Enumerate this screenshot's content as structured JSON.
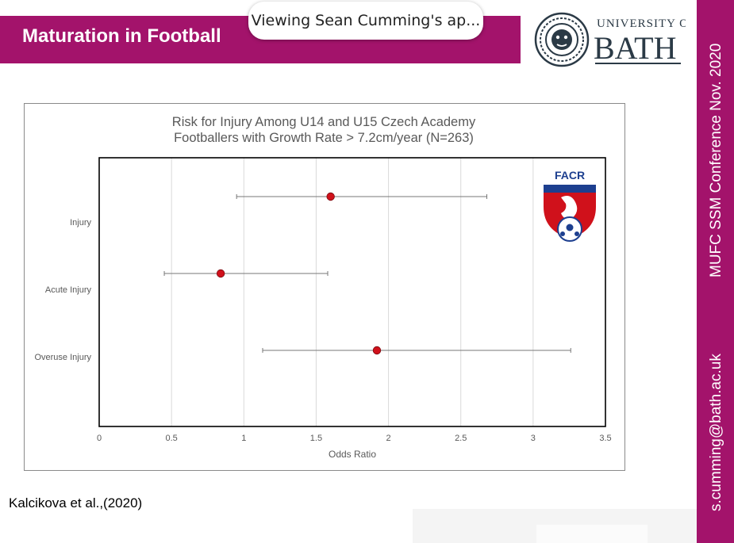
{
  "slide": {
    "title": "Maturation in Football",
    "citation": "Kalcikova et al.,(2020)"
  },
  "notification": {
    "text": "Viewing Sean Cumming's ap..."
  },
  "logo": {
    "line1": "UNIVERSITY OF",
    "line2": "BATH"
  },
  "side": {
    "conference": "MUFC SSM Conference  Nov.  2020",
    "email": "s.cumming@bath.ac.uk"
  },
  "colors": {
    "brand": "#a3136b",
    "marker": "#d0111b",
    "whisker": "#777777"
  },
  "badge": {
    "text": "FACR"
  },
  "chart_data": {
    "type": "scatter",
    "title_line1": "Risk for Injury Among U14 and U15 Czech Academy",
    "title_line2": "Footballers with Growth Rate > 7.2cm/year (N=263)",
    "xlabel": "Odds Ratio",
    "xlim": [
      0,
      3.5
    ],
    "xticks": [
      0,
      0.5,
      1,
      1.5,
      2,
      2.5,
      3,
      3.5
    ],
    "xtick_labels": [
      "0",
      "0.5",
      "1",
      "1.5",
      "2",
      "2.5",
      "3",
      "3.5"
    ],
    "grid": "vertical",
    "categories": [
      "Injury",
      "Acute Injury",
      "Overuse Injury"
    ],
    "points": [
      {
        "category": "Injury",
        "odds_ratio": 1.6,
        "ci_low": 0.95,
        "ci_high": 2.68
      },
      {
        "category": "Acute Injury",
        "odds_ratio": 0.84,
        "ci_low": 0.45,
        "ci_high": 1.58
      },
      {
        "category": "Overuse Injury",
        "odds_ratio": 1.92,
        "ci_low": 1.13,
        "ci_high": 3.26
      }
    ]
  }
}
